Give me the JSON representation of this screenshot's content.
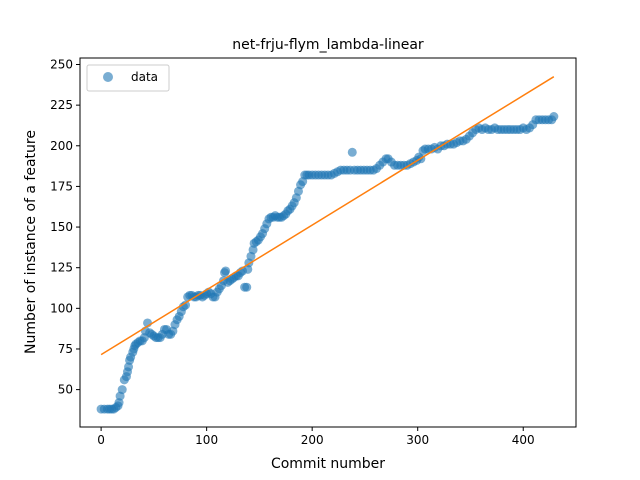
{
  "chart_data": {
    "type": "scatter",
    "title": "net-frju-flym_lambda-linear",
    "xlabel": "Commit number",
    "ylabel": "Number of instance of a feature",
    "xlim": [
      -20,
      450
    ],
    "ylim": [
      27,
      254
    ],
    "xticks": [
      0,
      100,
      200,
      300,
      400
    ],
    "yticks": [
      50,
      75,
      100,
      125,
      150,
      175,
      200,
      225,
      250
    ],
    "grid": false,
    "legend_position": "top-left",
    "colors": {
      "data": "#1f77b4",
      "fit": "#ff7f0e"
    },
    "series": [
      {
        "name": "data",
        "kind": "scatter",
        "points": [
          [
            0,
            38
          ],
          [
            3,
            38
          ],
          [
            6,
            38
          ],
          [
            8,
            38
          ],
          [
            10,
            38
          ],
          [
            12,
            38
          ],
          [
            14,
            39
          ],
          [
            16,
            40
          ],
          [
            17,
            42
          ],
          [
            18,
            46
          ],
          [
            20,
            50
          ],
          [
            22,
            56
          ],
          [
            24,
            58
          ],
          [
            25,
            61
          ],
          [
            26,
            64
          ],
          [
            27,
            68
          ],
          [
            28,
            70
          ],
          [
            30,
            73
          ],
          [
            31,
            75
          ],
          [
            32,
            77
          ],
          [
            33,
            78
          ],
          [
            35,
            79
          ],
          [
            37,
            80
          ],
          [
            39,
            80
          ],
          [
            41,
            82
          ],
          [
            42,
            86
          ],
          [
            44,
            91
          ],
          [
            46,
            85
          ],
          [
            48,
            84
          ],
          [
            50,
            83
          ],
          [
            52,
            82
          ],
          [
            54,
            82
          ],
          [
            56,
            82
          ],
          [
            58,
            84
          ],
          [
            60,
            87
          ],
          [
            62,
            87
          ],
          [
            64,
            84
          ],
          [
            66,
            84
          ],
          [
            68,
            86
          ],
          [
            70,
            90
          ],
          [
            72,
            93
          ],
          [
            74,
            95
          ],
          [
            76,
            98
          ],
          [
            78,
            101
          ],
          [
            80,
            102
          ],
          [
            82,
            107
          ],
          [
            84,
            108
          ],
          [
            86,
            108
          ],
          [
            88,
            107
          ],
          [
            90,
            107
          ],
          [
            92,
            108
          ],
          [
            94,
            108
          ],
          [
            96,
            107
          ],
          [
            98,
            108
          ],
          [
            100,
            109
          ],
          [
            102,
            110
          ],
          [
            104,
            109
          ],
          [
            106,
            107
          ],
          [
            108,
            107
          ],
          [
            110,
            110
          ],
          [
            112,
            112
          ],
          [
            114,
            114
          ],
          [
            116,
            117
          ],
          [
            117,
            122
          ],
          [
            118,
            123
          ],
          [
            120,
            116
          ],
          [
            122,
            117
          ],
          [
            124,
            118
          ],
          [
            126,
            119
          ],
          [
            128,
            120
          ],
          [
            130,
            120
          ],
          [
            132,
            122
          ],
          [
            134,
            123
          ],
          [
            136,
            113
          ],
          [
            138,
            113
          ],
          [
            139,
            124
          ],
          [
            140,
            128
          ],
          [
            142,
            132
          ],
          [
            144,
            136
          ],
          [
            145,
            140
          ],
          [
            147,
            141
          ],
          [
            149,
            142
          ],
          [
            151,
            144
          ],
          [
            153,
            146
          ],
          [
            155,
            149
          ],
          [
            157,
            152
          ],
          [
            159,
            155
          ],
          [
            161,
            156
          ],
          [
            163,
            156
          ],
          [
            165,
            157
          ],
          [
            167,
            156
          ],
          [
            169,
            156
          ],
          [
            171,
            156
          ],
          [
            173,
            157
          ],
          [
            175,
            158
          ],
          [
            177,
            160
          ],
          [
            179,
            161
          ],
          [
            181,
            163
          ],
          [
            183,
            165
          ],
          [
            185,
            168
          ],
          [
            187,
            172
          ],
          [
            189,
            176
          ],
          [
            191,
            178
          ],
          [
            193,
            182
          ],
          [
            195,
            182
          ],
          [
            197,
            182
          ],
          [
            200,
            182
          ],
          [
            203,
            182
          ],
          [
            206,
            182
          ],
          [
            209,
            182
          ],
          [
            212,
            182
          ],
          [
            215,
            182
          ],
          [
            218,
            182
          ],
          [
            221,
            183
          ],
          [
            224,
            184
          ],
          [
            227,
            185
          ],
          [
            230,
            185
          ],
          [
            233,
            185
          ],
          [
            236,
            185
          ],
          [
            238,
            196
          ],
          [
            240,
            185
          ],
          [
            243,
            185
          ],
          [
            246,
            185
          ],
          [
            249,
            185
          ],
          [
            252,
            185
          ],
          [
            255,
            185
          ],
          [
            258,
            185
          ],
          [
            261,
            186
          ],
          [
            264,
            188
          ],
          [
            267,
            190
          ],
          [
            270,
            192
          ],
          [
            272,
            192
          ],
          [
            275,
            190
          ],
          [
            278,
            188
          ],
          [
            281,
            188
          ],
          [
            284,
            188
          ],
          [
            287,
            188
          ],
          [
            290,
            188
          ],
          [
            293,
            189
          ],
          [
            296,
            190
          ],
          [
            299,
            191
          ],
          [
            301,
            193
          ],
          [
            303,
            192
          ],
          [
            305,
            197
          ],
          [
            307,
            198
          ],
          [
            310,
            198
          ],
          [
            313,
            198
          ],
          [
            316,
            199
          ],
          [
            319,
            198
          ],
          [
            322,
            200
          ],
          [
            325,
            200
          ],
          [
            328,
            201
          ],
          [
            331,
            201
          ],
          [
            334,
            201
          ],
          [
            337,
            202
          ],
          [
            340,
            203
          ],
          [
            343,
            203
          ],
          [
            346,
            204
          ],
          [
            349,
            206
          ],
          [
            352,
            208
          ],
          [
            355,
            210
          ],
          [
            358,
            211
          ],
          [
            361,
            210
          ],
          [
            364,
            211
          ],
          [
            367,
            210
          ],
          [
            370,
            210
          ],
          [
            373,
            211
          ],
          [
            376,
            210
          ],
          [
            379,
            210
          ],
          [
            382,
            210
          ],
          [
            385,
            210
          ],
          [
            388,
            210
          ],
          [
            391,
            210
          ],
          [
            394,
            210
          ],
          [
            397,
            210
          ],
          [
            400,
            211
          ],
          [
            403,
            210
          ],
          [
            406,
            211
          ],
          [
            409,
            213
          ],
          [
            412,
            216
          ],
          [
            415,
            216
          ],
          [
            418,
            216
          ],
          [
            421,
            216
          ],
          [
            424,
            216
          ],
          [
            427,
            216
          ],
          [
            429,
            218
          ]
        ]
      },
      {
        "name": "",
        "kind": "line",
        "points": [
          [
            0,
            71.5
          ],
          [
            429,
            242.5
          ]
        ]
      }
    ]
  }
}
